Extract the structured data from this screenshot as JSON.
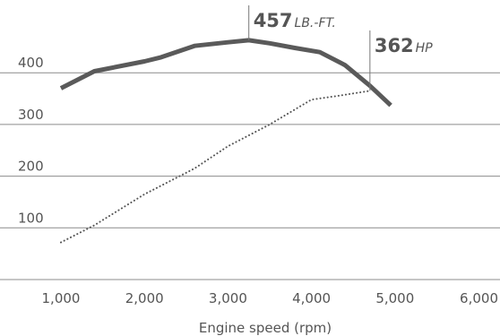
{
  "chart_data": {
    "type": "line",
    "xlabel": "Engine speed (rpm)",
    "ylabel": "",
    "xlim": [
      1000,
      6000
    ],
    "ylim": [
      0,
      520
    ],
    "x_ticks": [
      1000,
      2000,
      3000,
      4000,
      5000,
      6000
    ],
    "x_tick_labels": [
      "1,000",
      "2,000",
      "3,000",
      "4,000",
      "5,000",
      "6,000"
    ],
    "y_ticks": [
      100,
      200,
      300,
      400
    ],
    "y_tick_labels": [
      "100",
      "200",
      "300",
      "400"
    ],
    "grid": "horizontal",
    "series": [
      {
        "style": "solid",
        "color": "#5a5a5a",
        "x": [
          1000,
          1400,
          2000,
          2200,
          2600,
          3000,
          3250,
          3500,
          3800,
          4100,
          4400,
          4700,
          4950
        ],
        "y": [
          370,
          403,
          422,
          430,
          452,
          459,
          463,
          457,
          448,
          440,
          415,
          375,
          337
        ]
      },
      {
        "style": "dotted",
        "color": "#555555",
        "x": [
          1000,
          1400,
          2000,
          2600,
          3000,
          3500,
          4000,
          4300,
          4700
        ],
        "y": [
          72,
          105,
          165,
          215,
          258,
          300,
          348,
          355,
          365
        ]
      }
    ],
    "annotations": [
      {
        "id": "torque",
        "value": "457",
        "unit": "LB.-FT.",
        "x": 3250,
        "y": 463
      },
      {
        "id": "hp",
        "value": "362",
        "unit": "HP",
        "x": 4700,
        "y": 365
      }
    ]
  }
}
